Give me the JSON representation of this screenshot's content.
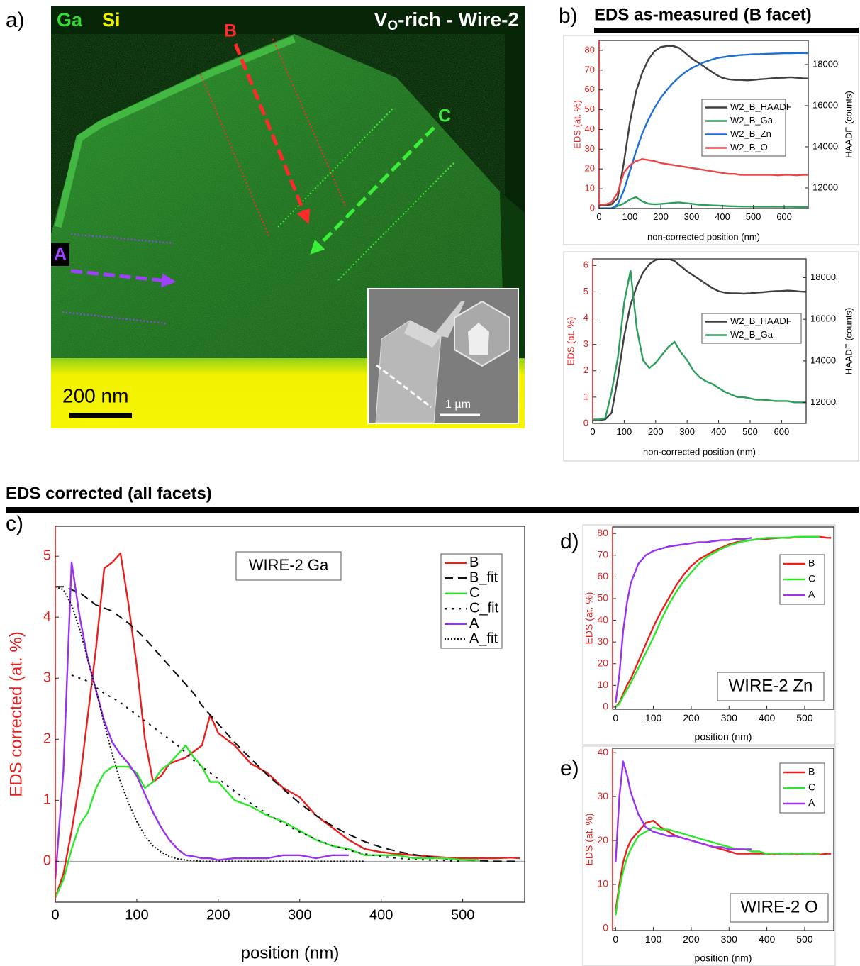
{
  "panel_labels": [
    "a)",
    "b)",
    "c)",
    "d)",
    "e)"
  ],
  "section_titles": [
    "EDS as-measured (B facet)",
    "EDS corrected (all facets)"
  ],
  "micrograph": {
    "element_labels": [
      "Ga",
      "Si"
    ],
    "title": [
      "V",
      "O",
      "-rich - Wire-2"
    ],
    "line_labels": [
      "A",
      "B",
      "C"
    ],
    "scale_bar": "200 nm",
    "inset_scale_bar": "1 µm"
  },
  "chart_data": [
    {
      "type": "line",
      "xlabel": "non-corrected position (nm)",
      "ylabel": "EDS (at. %)",
      "y2label": "HAADF (counts)",
      "y_color": "#e02424",
      "xlim": [
        0,
        678
      ],
      "xticks": [
        0,
        100,
        200,
        300,
        400,
        500,
        600
      ],
      "ylim": [
        0,
        85
      ],
      "yticks": [
        0,
        10,
        20,
        30,
        40,
        50,
        60,
        70,
        80
      ],
      "y2lim": [
        11000,
        19170
      ],
      "y2ticks": [
        12000,
        14000,
        16000,
        18000
      ],
      "x": [
        0,
        20,
        40,
        60,
        80,
        100,
        120,
        140,
        160,
        180,
        200,
        220,
        240,
        260,
        280,
        300,
        320,
        340,
        360,
        380,
        400,
        420,
        440,
        460,
        480,
        500,
        520,
        540,
        560,
        580,
        600,
        620,
        640,
        660,
        680
      ],
      "series": [
        {
          "name": "W2_B_HAADF",
          "color": "#404040",
          "axis": "y2",
          "style": "solid",
          "values": [
            11150,
            11150,
            11200,
            11500,
            13200,
            15200,
            16700,
            17600,
            18250,
            18650,
            18850,
            18900,
            18900,
            18800,
            18550,
            18300,
            18100,
            17900,
            17700,
            17500,
            17350,
            17280,
            17250,
            17250,
            17230,
            17250,
            17280,
            17300,
            17330,
            17350,
            17360,
            17380,
            17360,
            17330,
            17320
          ]
        },
        {
          "name": "W2_B_Ga",
          "color": "#2e9e5e",
          "style": "solid",
          "values": [
            0.15,
            0.15,
            0.2,
            1.2,
            2.5,
            4.6,
            5.8,
            3.6,
            2.4,
            2.1,
            2.3,
            2.6,
            2.9,
            3.1,
            2.7,
            2.4,
            2.0,
            1.75,
            1.6,
            1.5,
            1.35,
            1.2,
            1.1,
            1.0,
            1.0,
            0.95,
            0.9,
            0.9,
            0.88,
            0.85,
            0.85,
            0.85,
            0.8,
            0.8,
            0.8
          ]
        },
        {
          "name": "W2_B_Zn",
          "color": "#1e6fd4",
          "style": "solid",
          "values": [
            0,
            0,
            0,
            2,
            9,
            19,
            29,
            38,
            45,
            51,
            56,
            60,
            63.5,
            66.5,
            69,
            71,
            72.5,
            74,
            75,
            76,
            76.5,
            77,
            77.3,
            77.6,
            77.8,
            78,
            78,
            78.2,
            78.3,
            78.4,
            78.5,
            78.5,
            78.6,
            78.6,
            78.5
          ]
        },
        {
          "name": "W2_B_O",
          "color": "#e84848",
          "style": "solid",
          "values": [
            2,
            2,
            3,
            8,
            18,
            22,
            24,
            25,
            24.5,
            24,
            23,
            22.5,
            22,
            21.5,
            21,
            20.5,
            20,
            19.5,
            19,
            18.5,
            18,
            17.5,
            17.5,
            17,
            17,
            17,
            17,
            17,
            17,
            16.8,
            17,
            17,
            16.8,
            17,
            17
          ]
        }
      ]
    },
    {
      "type": "line",
      "xlabel": "non-corrected position (nm)",
      "ylabel": "EDS (at. %)",
      "y2label": "HAADF (counts)",
      "y_color": "#e02424",
      "xlim": [
        0,
        678
      ],
      "xticks": [
        0,
        100,
        200,
        300,
        400,
        500,
        600
      ],
      "ylim": [
        0,
        6.25
      ],
      "yticks": [
        0,
        1,
        2,
        3,
        4,
        5,
        6
      ],
      "y2lim": [
        11000,
        18900
      ],
      "y2ticks": [
        12000,
        14000,
        16000,
        18000
      ],
      "x": [
        0,
        20,
        40,
        60,
        80,
        100,
        120,
        140,
        160,
        180,
        200,
        220,
        240,
        260,
        280,
        300,
        320,
        340,
        360,
        380,
        400,
        420,
        440,
        460,
        480,
        500,
        520,
        540,
        560,
        580,
        600,
        620,
        640,
        660,
        680
      ],
      "series": [
        {
          "name": "W2_B_HAADF",
          "color": "#404040",
          "axis": "y2",
          "style": "solid",
          "values": [
            11150,
            11150,
            11200,
            11500,
            13200,
            15200,
            16700,
            17600,
            18250,
            18650,
            18850,
            18900,
            18900,
            18800,
            18550,
            18300,
            18100,
            17900,
            17700,
            17500,
            17350,
            17280,
            17250,
            17250,
            17230,
            17250,
            17280,
            17300,
            17330,
            17350,
            17360,
            17380,
            17360,
            17330,
            17320
          ]
        },
        {
          "name": "W2_B_Ga",
          "color": "#2e9e5e",
          "style": "solid",
          "values": [
            0.15,
            0.15,
            0.2,
            1.2,
            2.5,
            4.6,
            5.8,
            3.6,
            2.4,
            2.1,
            2.3,
            2.6,
            2.9,
            3.1,
            2.7,
            2.4,
            2.0,
            1.75,
            1.6,
            1.5,
            1.35,
            1.2,
            1.1,
            1.0,
            1.0,
            0.95,
            0.9,
            0.9,
            0.88,
            0.85,
            0.85,
            0.85,
            0.8,
            0.8,
            0.8
          ]
        }
      ]
    },
    {
      "type": "line",
      "annotation": "WIRE-2 Ga",
      "xlabel": "position (nm)",
      "ylabel": "EDS corrected (at. %)",
      "y_color": "#e02424",
      "zero_line": true,
      "xlim": [
        0,
        576
      ],
      "xticks": [
        0,
        100,
        200,
        300,
        400,
        500
      ],
      "ylim": [
        -0.67,
        5.49
      ],
      "yticks": [
        0,
        1,
        2,
        3,
        4,
        5
      ],
      "x": [
        0,
        10,
        20,
        30,
        40,
        50,
        60,
        70,
        80,
        90,
        100,
        110,
        120,
        130,
        140,
        150,
        160,
        170,
        180,
        190,
        200,
        220,
        240,
        260,
        280,
        300,
        320,
        340,
        360,
        380,
        400,
        420,
        440,
        460,
        480,
        500,
        520,
        540,
        560,
        570
      ],
      "series": [
        {
          "name": "B",
          "color": "#e8201e",
          "style": "solid",
          "values": [
            -0.6,
            -0.2,
            0.5,
            1.3,
            2.4,
            3.5,
            4.8,
            4.9,
            5.05,
            4.2,
            3.2,
            2.0,
            1.3,
            1.4,
            1.6,
            1.65,
            1.7,
            1.8,
            1.9,
            2.4,
            2.1,
            1.9,
            1.6,
            1.45,
            1.2,
            1.05,
            0.75,
            0.55,
            0.35,
            0.2,
            0.15,
            0.12,
            0.1,
            0.08,
            0.06,
            0.05,
            0.05,
            0.05,
            0.06,
            0.05
          ]
        },
        {
          "name": "B_fit",
          "color": "#111111",
          "style": "dashed",
          "values": [
            4.5,
            4.5,
            4.45,
            4.4,
            4.3,
            4.2,
            4.15,
            4.1,
            4.0,
            3.9,
            3.78,
            3.65,
            3.5,
            3.35,
            3.2,
            3.05,
            2.9,
            2.75,
            2.55,
            2.4,
            2.25,
            1.95,
            1.68,
            1.42,
            1.18,
            0.95,
            0.75,
            0.58,
            0.44,
            0.32,
            0.23,
            0.16,
            0.11,
            0.07,
            0.04,
            0.02,
            0.01,
            0,
            0,
            0
          ]
        },
        {
          "name": "C",
          "color": "#2ee62e",
          "style": "solid",
          "values": [
            -0.6,
            -0.3,
            0.2,
            0.6,
            0.8,
            1.2,
            1.45,
            1.55,
            1.55,
            1.55,
            1.45,
            1.2,
            1.3,
            1.5,
            1.6,
            1.75,
            1.9,
            1.7,
            1.55,
            1.3,
            1.3,
            1.0,
            0.9,
            0.75,
            0.65,
            0.5,
            0.35,
            0.25,
            0.2,
            0.1,
            0.1,
            0.1,
            0.05,
            0.05,
            0.05,
            0.02,
            0.02,
            null,
            null,
            null
          ]
        },
        {
          "name": "C_fit",
          "color": "#111111",
          "style": "dotted",
          "values": [
            null,
            null,
            3.05,
            3.0,
            2.95,
            2.85,
            2.75,
            2.68,
            2.6,
            2.5,
            2.4,
            2.3,
            2.2,
            2.1,
            2.0,
            1.9,
            1.78,
            1.65,
            1.55,
            1.45,
            1.35,
            1.15,
            0.95,
            0.78,
            0.62,
            0.48,
            0.36,
            0.26,
            0.18,
            0.12,
            0.08,
            0.05,
            0.03,
            0.02,
            0.01,
            0,
            null,
            null,
            null,
            null
          ]
        },
        {
          "name": "A",
          "color": "#9a33ee",
          "style": "solid",
          "values": [
            -0.3,
            1.5,
            4.9,
            4.0,
            3.3,
            2.8,
            2.3,
            1.95,
            1.75,
            1.6,
            1.4,
            1.1,
            0.8,
            0.55,
            0.35,
            0.2,
            0.1,
            0.08,
            0.05,
            0.05,
            0.02,
            0.05,
            0.05,
            0.05,
            0.1,
            0.1,
            0.05,
            0.1,
            0.1,
            null,
            null,
            null,
            null,
            null,
            null,
            null,
            null,
            null,
            null,
            null
          ]
        },
        {
          "name": "A_fit",
          "color": "#111111",
          "style": "fine-dotted",
          "values": [
            4.5,
            4.45,
            4.2,
            3.8,
            3.3,
            2.8,
            2.25,
            1.75,
            1.3,
            0.95,
            0.65,
            0.42,
            0.25,
            0.15,
            0.08,
            0.04,
            0.02,
            0.01,
            0,
            0,
            0,
            0,
            0,
            0,
            0,
            0,
            0,
            0,
            0,
            0,
            null,
            null,
            null,
            null,
            null,
            null,
            null,
            null,
            null,
            null
          ]
        }
      ]
    },
    {
      "type": "line",
      "annotation": "WIRE-2 Zn",
      "xlabel": "position (nm)",
      "ylabel": "EDS (at. %)",
      "y_color": "#e02424",
      "xlim": [
        -8,
        577
      ],
      "xticks": [
        0,
        100,
        200,
        300,
        400,
        500
      ],
      "ylim": [
        -1,
        83
      ],
      "yticks": [
        0,
        10,
        20,
        30,
        40,
        50,
        60,
        70,
        80
      ],
      "x": [
        0,
        10,
        20,
        30,
        40,
        60,
        80,
        100,
        120,
        140,
        160,
        180,
        200,
        220,
        240,
        260,
        280,
        300,
        320,
        340,
        360,
        380,
        400,
        420,
        440,
        460,
        480,
        500,
        520,
        540,
        560,
        570
      ],
      "series": [
        {
          "name": "B",
          "color": "#e8201e",
          "style": "solid",
          "values": [
            0,
            2,
            6,
            10,
            13,
            21,
            29,
            37,
            44,
            50,
            56,
            61,
            65,
            68,
            70,
            72,
            73.5,
            75,
            76,
            76.5,
            77,
            77.5,
            77.5,
            77.8,
            78,
            78,
            78.3,
            78.5,
            78.5,
            78.5,
            78,
            78
          ]
        },
        {
          "name": "C",
          "color": "#2ee62e",
          "style": "solid",
          "values": [
            0,
            1.5,
            5,
            8,
            11,
            18,
            25,
            32,
            40,
            47,
            53,
            58,
            62,
            66,
            69,
            71,
            73,
            74.5,
            75.5,
            76.5,
            77,
            77.5,
            78,
            78,
            78,
            78.2,
            78.5,
            78.5,
            78.5,
            78.5,
            null,
            null
          ]
        },
        {
          "name": "A",
          "color": "#9a33ee",
          "style": "solid",
          "values": [
            2,
            15,
            35,
            48,
            57,
            66,
            70,
            72,
            73,
            74,
            74.5,
            75,
            75.5,
            76,
            76,
            76.5,
            77,
            77,
            77.5,
            77.5,
            78,
            null,
            null,
            null,
            null,
            null,
            null,
            null,
            null,
            null,
            null,
            null
          ]
        }
      ]
    },
    {
      "type": "line",
      "annotation": "WIRE-2 O",
      "xlabel": "position (nm)",
      "ylabel": "EDS (at. %)",
      "y_color": "#e02424",
      "xlim": [
        -8,
        577
      ],
      "xticks": [
        0,
        100,
        200,
        300,
        400,
        500
      ],
      "ylim": [
        -0.5,
        41
      ],
      "yticks": [
        0,
        10,
        20,
        30,
        40
      ],
      "x": [
        0,
        10,
        20,
        30,
        40,
        60,
        80,
        100,
        120,
        140,
        160,
        180,
        200,
        220,
        240,
        260,
        280,
        300,
        320,
        340,
        360,
        380,
        400,
        420,
        440,
        460,
        480,
        500,
        520,
        540,
        560,
        570
      ],
      "series": [
        {
          "name": "B",
          "color": "#e8201e",
          "style": "solid",
          "values": [
            4,
            10,
            15,
            18,
            20,
            22,
            24,
            24.5,
            23,
            22,
            21,
            20.5,
            20,
            19.5,
            19,
            18.5,
            18,
            17.5,
            17,
            17,
            17,
            17,
            17,
            16.8,
            17,
            17,
            16.8,
            17,
            17,
            16.8,
            17,
            17
          ]
        },
        {
          "name": "C",
          "color": "#2ee62e",
          "style": "solid",
          "values": [
            3,
            9,
            13,
            16,
            18,
            21,
            22,
            23,
            22.5,
            22.5,
            22,
            21.5,
            21,
            20.5,
            20,
            19.5,
            19,
            18.5,
            18,
            18,
            17.5,
            17.5,
            17,
            17,
            17,
            17,
            17,
            17,
            17,
            17,
            null,
            null
          ]
        },
        {
          "name": "A",
          "color": "#9a33ee",
          "style": "solid",
          "values": [
            15,
            30,
            38,
            35,
            31,
            26,
            23,
            22,
            21.5,
            21,
            21,
            20.5,
            20,
            19.5,
            19,
            18.5,
            18.5,
            18,
            18,
            18,
            18,
            null,
            null,
            null,
            null,
            null,
            null,
            null,
            null,
            null,
            null,
            null
          ]
        }
      ]
    }
  ]
}
